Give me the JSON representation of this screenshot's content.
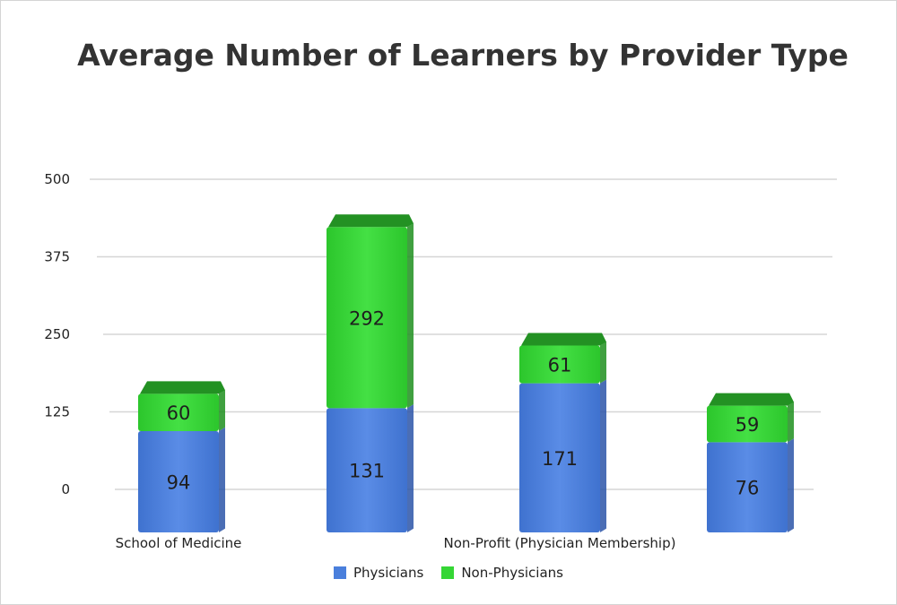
{
  "chart_data": {
    "type": "bar",
    "stacked": true,
    "title": "Average Number of Learners by Provider Type",
    "categories": [
      "School of Medicine",
      "",
      "Non-Profit (Physician Membership)",
      ""
    ],
    "series": [
      {
        "name": "Physicians",
        "values": [
          94,
          131,
          171,
          76
        ],
        "color": "#4a7fdc"
      },
      {
        "name": "Non-Physicians",
        "values": [
          60,
          292,
          61,
          59
        ],
        "color": "#35d635"
      }
    ],
    "yticks": [
      0,
      125,
      250,
      375,
      500
    ],
    "ylim": [
      0,
      500
    ],
    "grid": true,
    "legend_position": "bottom"
  }
}
